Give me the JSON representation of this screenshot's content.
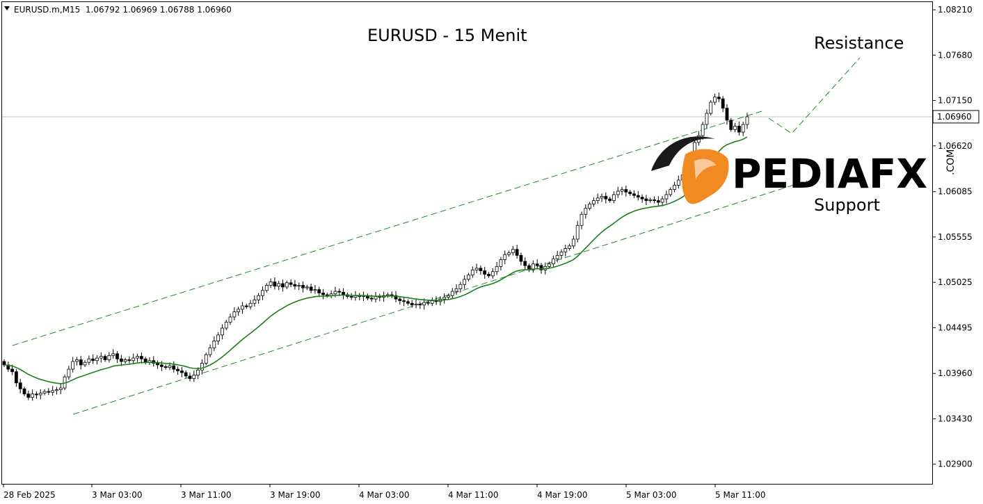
{
  "window": {
    "symbol_line": "EURUSD.m,M15  1.06792 1.06969 1.06788 1.06960"
  },
  "annotations": {
    "title": "EURUSD - 15 Menit",
    "resistance_label": "Resistance",
    "support_label": "Support"
  },
  "logo": {
    "text": "PEDIAFX",
    "suffix": ".COM",
    "accent_color": "#f28a22"
  },
  "colors": {
    "candle": "#000000",
    "ma_line": "#1a7f1a",
    "channel_line": "#1f8a2a",
    "price_line": "#c0c0c0",
    "price_marker_bg": "#ffffff"
  },
  "chart_data": {
    "type": "candlestick",
    "symbol": "EURUSD.m",
    "timeframe": "M15",
    "ohlc_current": {
      "open": 1.06792,
      "high": 1.06969,
      "low": 1.06788,
      "close": 1.0696
    },
    "current_price_label": "1.06960",
    "y_ticks": [
      "1.08210",
      "1.07680",
      "1.07150",
      "1.06620",
      "1.06085",
      "1.05555",
      "1.05025",
      "1.04495",
      "1.03960",
      "1.03430",
      "1.02900"
    ],
    "y_tick_values": [
      1.0821,
      1.0768,
      1.0715,
      1.0662,
      1.06085,
      1.05555,
      1.05025,
      1.04495,
      1.0396,
      1.0343,
      1.029
    ],
    "ylim": [
      1.0267,
      1.083
    ],
    "x_ticks": [
      "28 Feb 2025",
      "3 Mar 03:00",
      "3 Mar 11:00",
      "3 Mar 19:00",
      "4 Mar 03:00",
      "4 Mar 11:00",
      "4 Mar 19:00",
      "5 Mar 03:00",
      "5 Mar 11:00"
    ],
    "grid": false,
    "closes": [
      1.0406,
      1.0401,
      1.0398,
      1.0385,
      1.0378,
      1.0372,
      1.0368,
      1.0372,
      1.0371,
      1.0373,
      1.0375,
      1.0374,
      1.0376,
      1.0377,
      1.0379,
      1.0392,
      1.0401,
      1.041,
      1.0412,
      1.0406,
      1.0409,
      1.0413,
      1.0411,
      1.0414,
      1.0416,
      1.0412,
      1.0417,
      1.0419,
      1.0413,
      1.041,
      1.0412,
      1.0411,
      1.0414,
      1.0416,
      1.0413,
      1.0409,
      1.0411,
      1.0408,
      1.0406,
      1.0404,
      1.0403,
      1.0405,
      1.0401,
      1.0399,
      1.0397,
      1.0393,
      1.039,
      1.0394,
      1.04,
      1.0408,
      1.0418,
      1.0426,
      1.0434,
      1.0441,
      1.0449,
      1.0456,
      1.0462,
      1.0468,
      1.0471,
      1.0475,
      1.0474,
      1.0478,
      1.0482,
      1.0487,
      1.0493,
      1.0499,
      1.0503,
      1.0498,
      1.0501,
      1.0497,
      1.0502,
      1.05,
      1.0498,
      1.0499,
      1.0496,
      1.0497,
      1.0493,
      1.0494,
      1.049,
      1.0488,
      1.0487,
      1.0489,
      1.0492,
      1.0491,
      1.0488,
      1.0486,
      1.0485,
      1.0487,
      1.0486,
      1.0487,
      1.0484,
      1.0483,
      1.0486,
      1.0485,
      1.0487,
      1.0488,
      1.0487,
      1.0483,
      1.0481,
      1.048,
      1.0478,
      1.0476,
      1.0477,
      1.0476,
      1.0479,
      1.0478,
      1.0481,
      1.048,
      1.0483,
      1.0485,
      1.0487,
      1.0492,
      1.0495,
      1.05,
      1.0506,
      1.0511,
      1.0517,
      1.0519,
      1.0516,
      1.0512,
      1.051,
      1.0515,
      1.0521,
      1.0529,
      1.0535,
      1.0537,
      1.0541,
      1.0534,
      1.0527,
      1.0522,
      1.0517,
      1.0524,
      1.0522,
      1.0517,
      1.0521,
      1.0524,
      1.053,
      1.0534,
      1.0538,
      1.0542,
      1.0545,
      1.0553,
      1.0569,
      1.0582,
      1.0589,
      1.0594,
      1.0598,
      1.0601,
      1.0603,
      1.06,
      1.0598,
      1.0605,
      1.0609,
      1.0611,
      1.0608,
      1.0606,
      1.0604,
      1.0602,
      1.06,
      1.0598,
      1.0599,
      1.0598,
      1.0596,
      1.06,
      1.0605,
      1.0611,
      1.0616,
      1.0622,
      1.0628,
      1.0639,
      1.0652,
      1.0666,
      1.0674,
      1.0687,
      1.07,
      1.0713,
      1.0719,
      1.0717,
      1.0706,
      1.0692,
      1.0681,
      1.0685,
      1.0678,
      1.0687,
      1.0696
    ]
  }
}
